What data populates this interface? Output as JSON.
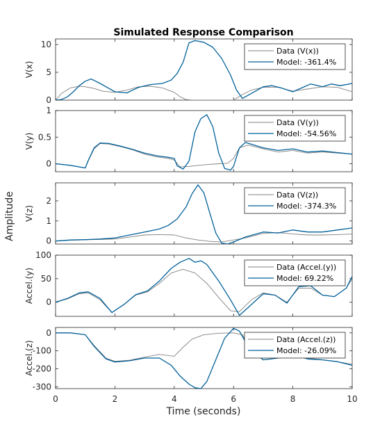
{
  "title": "Simulated Response Comparison",
  "xlabel": "Time (seconds)",
  "ylabel": "Amplitude",
  "colors": {
    "data": "#808080",
    "model": "#00609a"
  },
  "chart_data": {
    "type": "line",
    "title": "Simulated Response Comparison",
    "xlabel": "Time (seconds)",
    "ylabel": "Amplitude",
    "xlim": [
      0,
      10
    ],
    "xticks": [
      "0",
      "2",
      "4",
      "6",
      "8",
      "10"
    ],
    "legend_position": "top-right",
    "subplots": [
      {
        "ylabel": "V(x)",
        "ylim": [
          0,
          11
        ],
        "yticks": [
          0,
          5,
          10
        ],
        "series": [
          {
            "name": "Data (V(x))",
            "x": [
              0,
              0.2,
              0.5,
              0.8,
              1.0,
              1.3,
              1.6,
              2.0,
              2.4,
              2.8,
              3.2,
              3.6,
              4.0,
              4.2,
              4.4,
              4.6,
              5.0,
              5.5,
              6.0,
              6.3,
              6.6,
              7.0,
              7.5,
              8.0,
              8.5,
              9.0,
              9.5,
              10
            ],
            "y": [
              0,
              1.2,
              2.2,
              2.5,
              2.4,
              2.1,
              1.6,
              1.4,
              1.8,
              2.4,
              2.5,
              2.2,
              1.4,
              0.6,
              0.1,
              0.0,
              0.0,
              0.0,
              0.0,
              1.0,
              1.8,
              2.3,
              2.3,
              1.6,
              2.0,
              2.4,
              2.3,
              1.5
            ]
          },
          {
            "name": "Model: -361.4%",
            "x": [
              0,
              0.2,
              0.4,
              0.6,
              0.8,
              1.0,
              1.2,
              1.5,
              2.0,
              2.4,
              2.8,
              3.2,
              3.6,
              3.9,
              4.1,
              4.3,
              4.5,
              4.7,
              5.0,
              5.3,
              5.6,
              5.9,
              6.1,
              6.3,
              6.6,
              7.0,
              7.3,
              7.6,
              8.0,
              8.3,
              8.6,
              9.0,
              9.3,
              9.6,
              10
            ],
            "y": [
              0,
              0.1,
              0.6,
              1.5,
              2.6,
              3.4,
              3.8,
              3.0,
              1.5,
              1.3,
              2.3,
              2.8,
              3.0,
              3.6,
              4.8,
              6.8,
              10.3,
              10.7,
              10.4,
              9.5,
              7.5,
              4.5,
              1.8,
              0.3,
              1.2,
              2.4,
              2.6,
              2.2,
              1.5,
              2.2,
              2.9,
              2.4,
              2.9,
              2.6,
              3.0
            ]
          }
        ]
      },
      {
        "ylabel": "V(y)",
        "ylim": [
          -0.15,
          1.0
        ],
        "yticks": [
          0,
          0.5,
          1
        ],
        "series": [
          {
            "name": "Data (V(y))",
            "x": [
              0,
              0.5,
              1.0,
              1.1,
              1.3,
              1.5,
              1.8,
              2.2,
              2.6,
              3.0,
              3.4,
              3.8,
              4.0,
              4.2,
              4.5,
              5.0,
              5.5,
              5.8,
              6.0,
              6.2,
              6.5,
              7.0,
              7.5,
              8.0,
              8.5,
              9.0,
              9.5,
              10
            ],
            "y": [
              0,
              -0.03,
              -0.08,
              0.05,
              0.28,
              0.38,
              0.37,
              0.32,
              0.26,
              0.18,
              0.13,
              0.1,
              0.07,
              -0.06,
              -0.05,
              -0.02,
              0.0,
              0.01,
              0.1,
              0.3,
              0.35,
              0.28,
              0.22,
              0.25,
              0.2,
              0.22,
              0.2,
              0.18
            ]
          },
          {
            "name": "Model: -54.56%",
            "x": [
              0,
              0.5,
              1.0,
              1.1,
              1.3,
              1.5,
              1.8,
              2.2,
              2.6,
              3.0,
              3.4,
              3.8,
              4.0,
              4.1,
              4.3,
              4.5,
              4.7,
              4.9,
              5.1,
              5.3,
              5.5,
              5.7,
              5.9,
              6.0,
              6.2,
              6.4,
              7.0,
              7.5,
              8.0,
              8.5,
              9.0,
              9.5,
              10
            ],
            "y": [
              0,
              -0.03,
              -0.08,
              0.06,
              0.3,
              0.39,
              0.38,
              0.33,
              0.27,
              0.2,
              0.15,
              0.12,
              0.1,
              -0.04,
              -0.1,
              0.05,
              0.6,
              0.85,
              0.92,
              0.7,
              0.2,
              -0.09,
              -0.12,
              -0.05,
              0.3,
              0.4,
              0.3,
              0.25,
              0.28,
              0.22,
              0.24,
              0.21,
              0.18
            ]
          }
        ]
      },
      {
        "ylabel": "V(z)",
        "ylim": [
          -0.15,
          2.9
        ],
        "yticks": [
          0,
          1,
          2
        ],
        "series": [
          {
            "name": "Data (V(z))",
            "x": [
              0,
              0.5,
              1.0,
              1.5,
              2.0,
              2.5,
              3.0,
              3.5,
              4.0,
              4.4,
              4.8,
              5.2,
              5.6,
              6.0,
              6.4,
              7.0,
              7.5,
              8.0,
              8.5,
              9.0,
              9.5,
              10
            ],
            "y": [
              0,
              0.04,
              0.06,
              0.08,
              0.1,
              0.2,
              0.3,
              0.32,
              0.3,
              0.15,
              0.05,
              -0.02,
              -0.05,
              0.05,
              0.15,
              0.38,
              0.42,
              0.35,
              0.3,
              0.3,
              0.32,
              0.35
            ]
          },
          {
            "name": "Model: -374.3%",
            "x": [
              0,
              0.5,
              1.0,
              1.5,
              2.0,
              2.5,
              3.0,
              3.5,
              3.8,
              4.1,
              4.4,
              4.6,
              4.8,
              5.0,
              5.2,
              5.4,
              5.6,
              5.8,
              6.0,
              6.4,
              7.0,
              7.5,
              8.0,
              8.5,
              9.0,
              9.5,
              10
            ],
            "y": [
              0,
              0.05,
              0.07,
              0.1,
              0.15,
              0.3,
              0.45,
              0.6,
              0.78,
              1.1,
              1.7,
              2.35,
              2.8,
              2.4,
              1.4,
              0.4,
              -0.1,
              -0.15,
              -0.05,
              0.2,
              0.45,
              0.4,
              0.55,
              0.45,
              0.45,
              0.55,
              0.65
            ]
          }
        ]
      },
      {
        "ylabel": "Accel.(y)",
        "ylim": [
          -30,
          100
        ],
        "yticks": [
          0,
          50,
          100
        ],
        "series": [
          {
            "name": "Data (Accel.(y))",
            "x": [
              0,
              0.4,
              0.8,
              1.1,
              1.5,
              1.9,
              2.3,
              2.7,
              3.1,
              3.5,
              3.9,
              4.3,
              4.7,
              5.1,
              5.5,
              5.9,
              6.2,
              6.6,
              7.0,
              7.4,
              7.8,
              8.2,
              8.6,
              9.0,
              9.4,
              9.8,
              10
            ],
            "y": [
              0,
              7,
              18,
              20,
              5,
              -22,
              -5,
              15,
              22,
              40,
              62,
              70,
              62,
              40,
              10,
              -18,
              -20,
              5,
              20,
              15,
              0,
              30,
              30,
              15,
              12,
              30,
              50
            ]
          },
          {
            "name": "Model: 69.22%",
            "x": [
              0,
              0.4,
              0.8,
              1.1,
              1.5,
              1.9,
              2.3,
              2.7,
              3.1,
              3.5,
              3.9,
              4.2,
              4.5,
              4.7,
              4.9,
              5.1,
              5.5,
              5.9,
              6.2,
              6.6,
              7.0,
              7.4,
              7.8,
              8.2,
              8.6,
              9.0,
              9.4,
              9.8,
              10
            ],
            "y": [
              0,
              8,
              20,
              22,
              8,
              -22,
              -5,
              16,
              24,
              45,
              72,
              85,
              93,
              85,
              88,
              80,
              45,
              5,
              -28,
              -5,
              18,
              15,
              -2,
              33,
              35,
              15,
              12,
              30,
              55
            ]
          }
        ]
      },
      {
        "ylabel": "Accel.(z)",
        "ylim": [
          -310,
          30
        ],
        "yticks": [
          -300,
          -200,
          -100,
          0
        ],
        "series": [
          {
            "name": "Data (Accel.(z))",
            "x": [
              0,
              0.5,
              1.0,
              1.3,
              1.7,
              2.0,
              2.5,
              3.0,
              3.5,
              4.0,
              4.3,
              4.6,
              5.0,
              5.5,
              6.0,
              6.3,
              6.6,
              7.0,
              7.5,
              8.0,
              8.5,
              9.0,
              9.5,
              10
            ],
            "y": [
              0,
              0,
              -10,
              -70,
              -140,
              -158,
              -152,
              -135,
              -120,
              -130,
              -80,
              -35,
              -10,
              -2,
              0,
              -10,
              -100,
              -150,
              -140,
              -120,
              -140,
              -150,
              -160,
              -175
            ]
          },
          {
            "name": "Model: -26.09%",
            "x": [
              0,
              0.5,
              1.0,
              1.3,
              1.7,
              2.0,
              2.5,
              3.0,
              3.5,
              3.9,
              4.2,
              4.5,
              4.7,
              4.9,
              5.1,
              5.4,
              5.7,
              6.0,
              6.2,
              6.5,
              7.0,
              7.5,
              8.0,
              8.5,
              9.0,
              9.5,
              10
            ],
            "y": [
              0,
              0,
              -10,
              -75,
              -145,
              -162,
              -155,
              -140,
              -140,
              -180,
              -240,
              -285,
              -305,
              -310,
              -270,
              -150,
              -30,
              25,
              10,
              -80,
              -150,
              -140,
              -120,
              -145,
              -150,
              -160,
              -180
            ]
          }
        ]
      }
    ]
  }
}
